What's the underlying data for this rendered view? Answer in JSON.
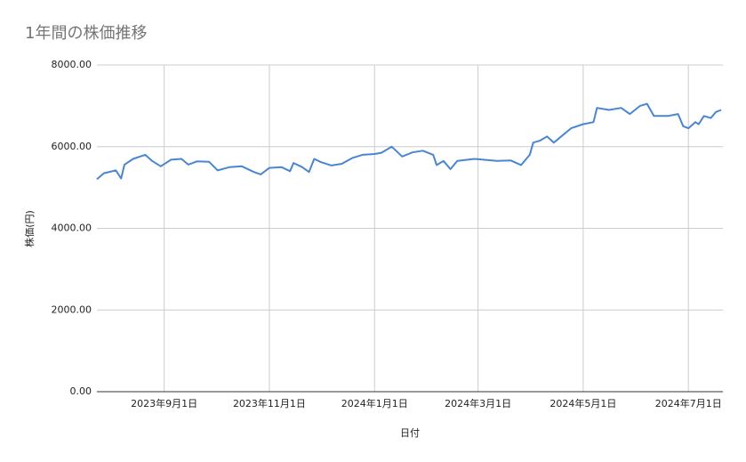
{
  "chart_data": {
    "type": "line",
    "title": "1年間の株価推移",
    "x_label": "日付",
    "y_label": "株価(円)",
    "x": [
      "2023-07-24",
      "2023-07-28",
      "2023-08-04",
      "2023-08-07",
      "2023-08-09",
      "2023-08-14",
      "2023-08-21",
      "2023-08-25",
      "2023-08-30",
      "2023-09-05",
      "2023-09-11",
      "2023-09-15",
      "2023-09-20",
      "2023-09-27",
      "2023-10-02",
      "2023-10-09",
      "2023-10-16",
      "2023-10-23",
      "2023-10-27",
      "2023-11-01",
      "2023-11-08",
      "2023-11-13",
      "2023-11-15",
      "2023-11-20",
      "2023-11-24",
      "2023-11-27",
      "2023-12-01",
      "2023-12-07",
      "2023-12-13",
      "2023-12-19",
      "2023-12-25",
      "2024-01-01",
      "2024-01-05",
      "2024-01-11",
      "2024-01-17",
      "2024-01-23",
      "2024-01-29",
      "2024-02-04",
      "2024-02-06",
      "2024-02-10",
      "2024-02-14",
      "2024-02-18",
      "2024-02-28",
      "2024-03-12",
      "2024-03-20",
      "2024-03-26",
      "2024-03-31",
      "2024-04-02",
      "2024-04-06",
      "2024-04-10",
      "2024-04-14",
      "2024-04-24",
      "2024-05-01",
      "2024-05-07",
      "2024-05-09",
      "2024-05-16",
      "2024-05-23",
      "2024-05-28",
      "2024-06-03",
      "2024-06-07",
      "2024-06-11",
      "2024-06-19",
      "2024-06-25",
      "2024-06-28",
      "2024-07-01",
      "2024-07-05",
      "2024-07-07",
      "2024-07-10",
      "2024-07-14",
      "2024-07-17",
      "2024-07-20"
    ],
    "series": [
      {
        "name": "株価(円)",
        "color": "#4a86d0",
        "values": [
          5200,
          5350,
          5420,
          5220,
          5560,
          5700,
          5800,
          5650,
          5520,
          5680,
          5700,
          5560,
          5640,
          5630,
          5420,
          5500,
          5520,
          5380,
          5320,
          5480,
          5500,
          5400,
          5600,
          5500,
          5380,
          5700,
          5620,
          5540,
          5580,
          5720,
          5800,
          5820,
          5850,
          6000,
          5760,
          5860,
          5900,
          5800,
          5550,
          5650,
          5450,
          5650,
          5700,
          5650,
          5660,
          5550,
          5800,
          6100,
          6150,
          6250,
          6100,
          6450,
          6550,
          6600,
          6950,
          6900,
          6950,
          6800,
          7000,
          7050,
          6750,
          6750,
          6800,
          6500,
          6450,
          6600,
          6550,
          6750,
          6700,
          6850,
          6900
        ]
      }
    ],
    "xlim": [
      "2023-07-24",
      "2024-07-21"
    ],
    "xticks": [
      {
        "value": "2023-09-01",
        "label": "2023年9月1日"
      },
      {
        "value": "2023-11-01",
        "label": "2023年11月1日"
      },
      {
        "value": "2024-01-01",
        "label": "2024年1月1日"
      },
      {
        "value": "2024-03-01",
        "label": "2024年3月1日"
      },
      {
        "value": "2024-05-01",
        "label": "2024年5月1日"
      },
      {
        "value": "2024-07-01",
        "label": "2024年7月1日"
      }
    ],
    "ylim": [
      0,
      8000
    ],
    "yticks": [
      {
        "value": 0,
        "label": "0.00"
      },
      {
        "value": 2000,
        "label": "2000.00"
      },
      {
        "value": 4000,
        "label": "4000.00"
      },
      {
        "value": 6000,
        "label": "6000.00"
      },
      {
        "value": 8000,
        "label": "8000.00"
      }
    ],
    "grid": true
  }
}
